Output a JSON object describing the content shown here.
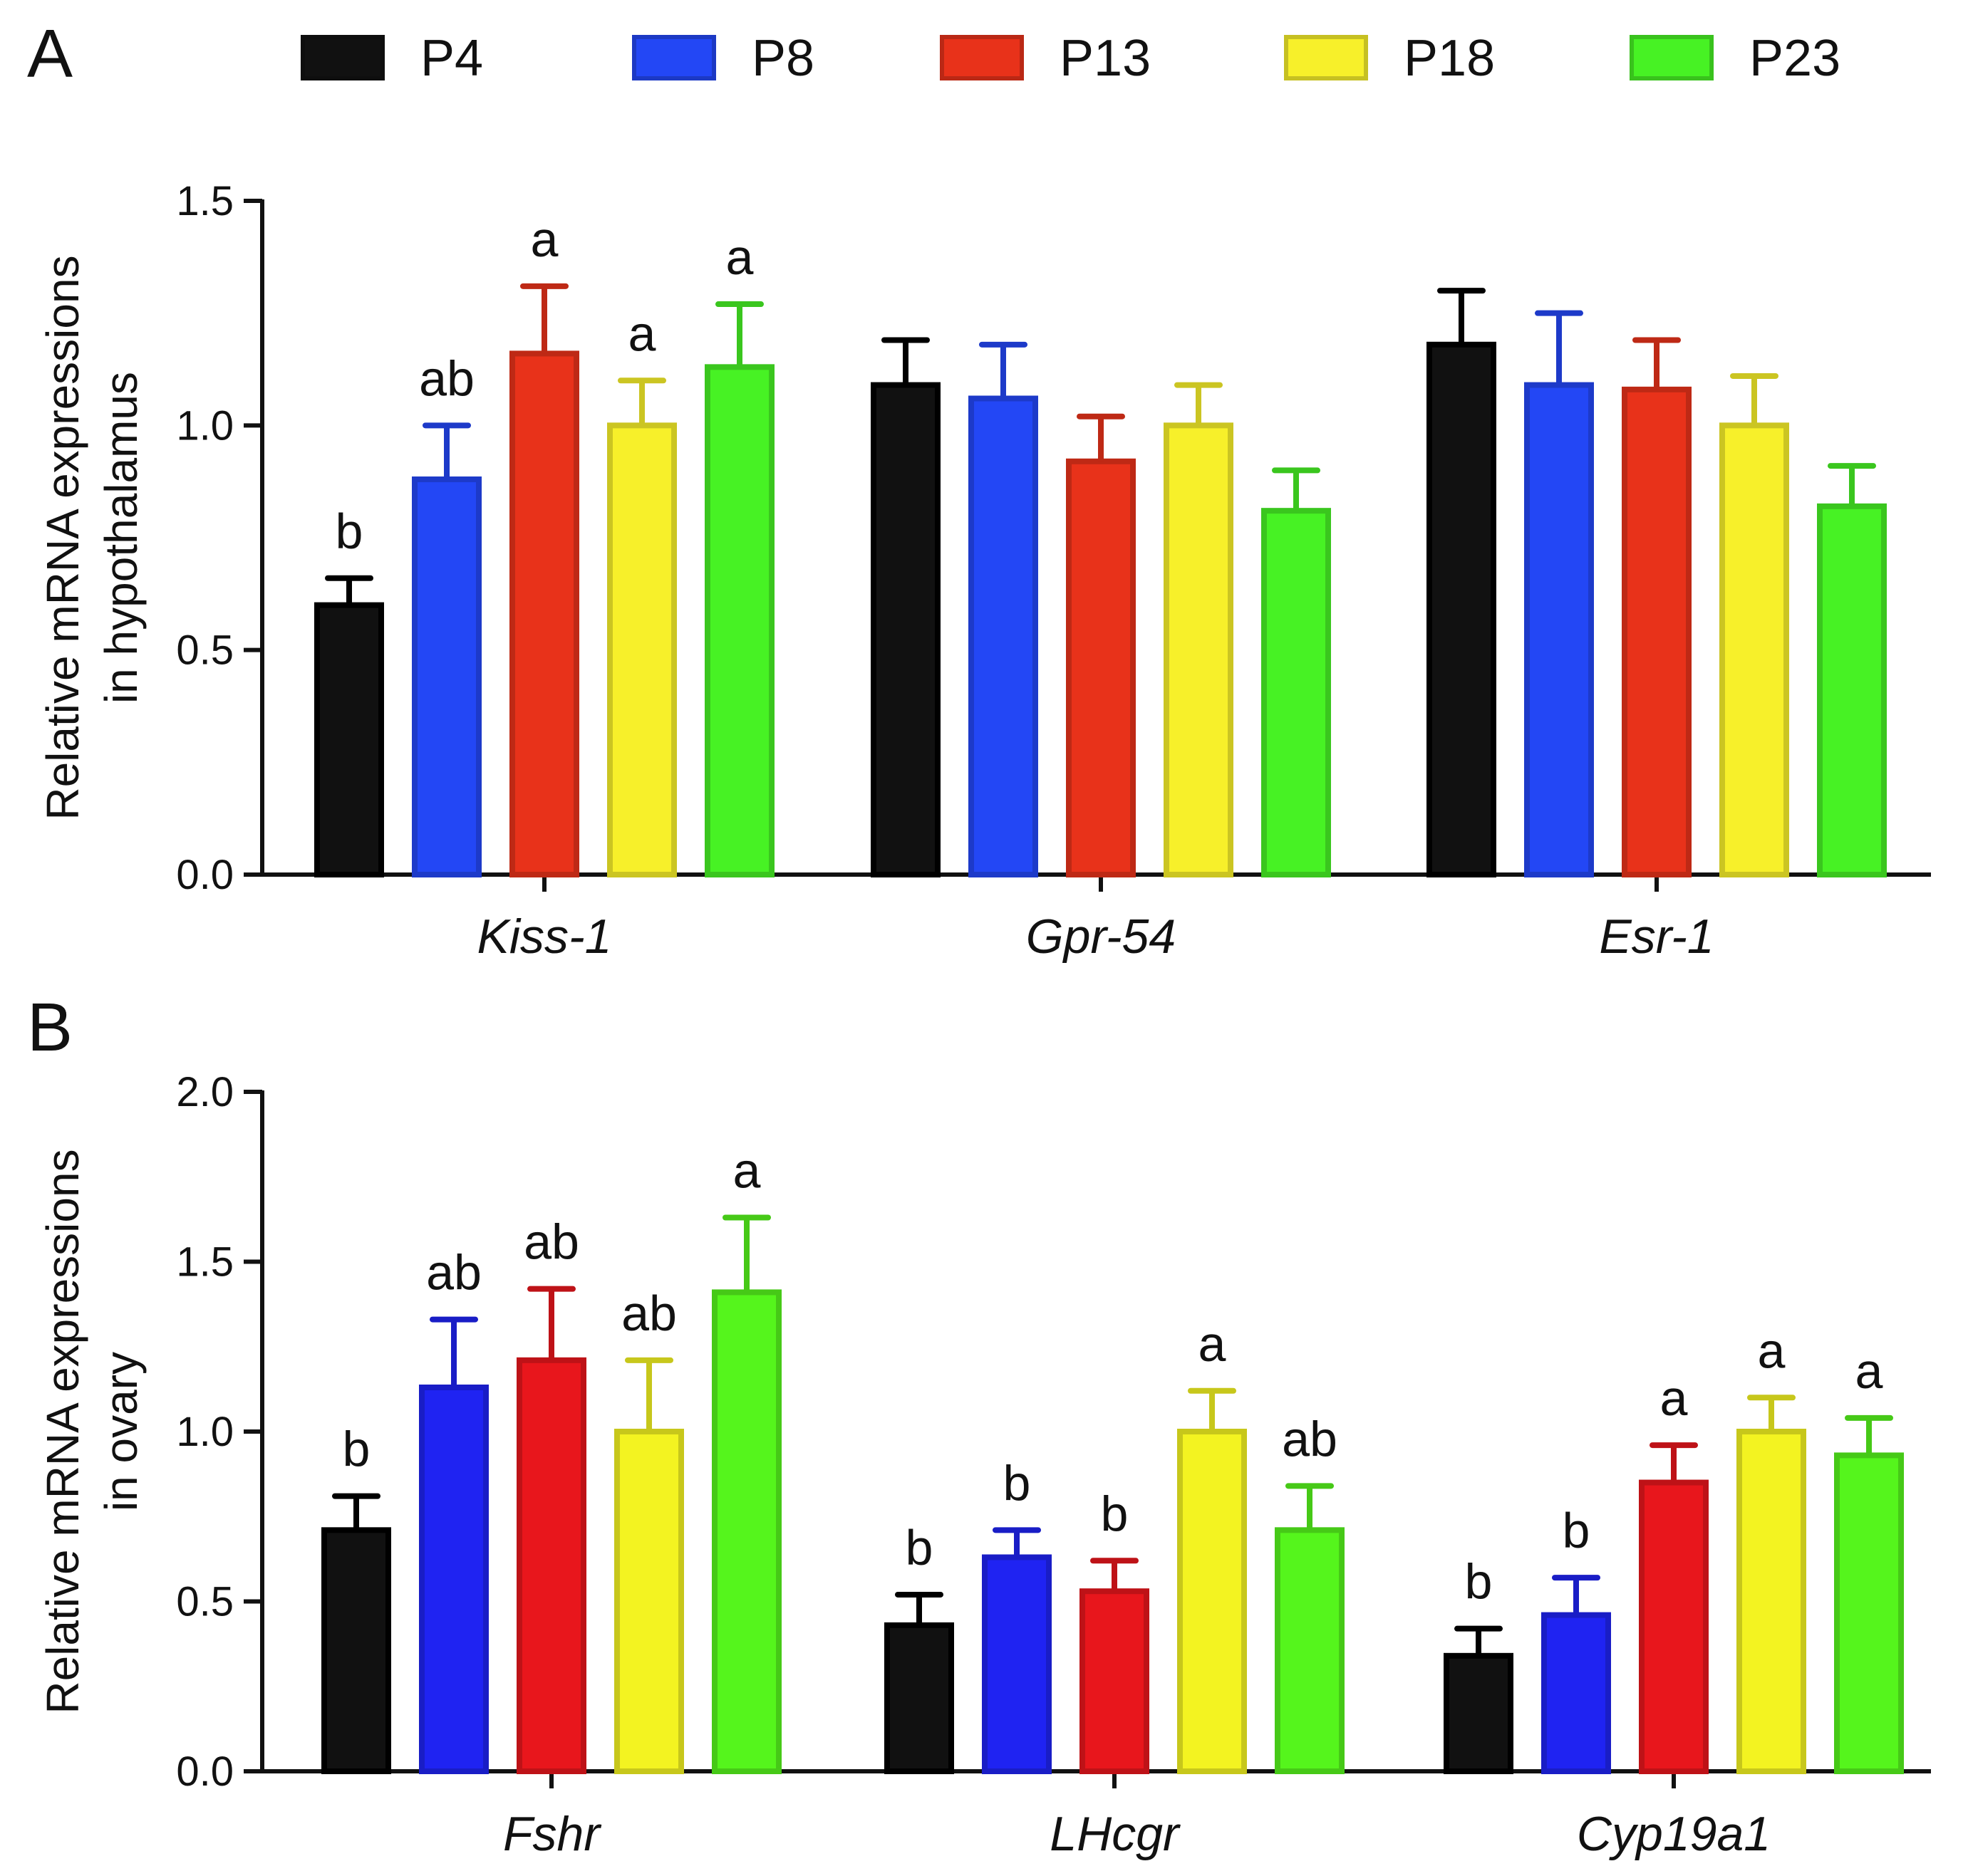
{
  "figure": {
    "legend": [
      {
        "label": "P4",
        "color": "#111111"
      },
      {
        "label": "P8",
        "color": "#2347f5"
      },
      {
        "label": "P13",
        "color": "#e8321a"
      },
      {
        "label": "P18",
        "color": "#f7f02a"
      },
      {
        "label": "P23",
        "color": "#47f224"
      }
    ]
  },
  "chart_data": [
    {
      "panel": "A",
      "type": "bar",
      "ylabel_lines": [
        "Relative mRNA expressions",
        "in hypothalamus"
      ],
      "ylim": [
        0,
        1.5
      ],
      "yticks": [
        "0.0",
        "0.5",
        "1.0",
        "1.5"
      ],
      "categories": [
        "Kiss-1",
        "Gpr-54",
        "Esr-1"
      ],
      "series": [
        {
          "name": "P4",
          "color": "#111111",
          "values": [
            0.6,
            1.09,
            1.18
          ],
          "errors": [
            0.06,
            0.1,
            0.12
          ],
          "sig": [
            "b",
            "",
            ""
          ]
        },
        {
          "name": "P8",
          "color": "#2347f5",
          "values": [
            0.88,
            1.06,
            1.09
          ],
          "errors": [
            0.12,
            0.12,
            0.16
          ],
          "sig": [
            "ab",
            "",
            ""
          ]
        },
        {
          "name": "P13",
          "color": "#e8321a",
          "values": [
            1.16,
            0.92,
            1.08
          ],
          "errors": [
            0.15,
            0.1,
            0.11
          ],
          "sig": [
            "a",
            "",
            ""
          ]
        },
        {
          "name": "P18",
          "color": "#f7f02a",
          "values": [
            1.0,
            1.0,
            1.0
          ],
          "errors": [
            0.1,
            0.09,
            0.11
          ],
          "sig": [
            "a",
            "",
            ""
          ]
        },
        {
          "name": "P23",
          "color": "#47f224",
          "values": [
            1.13,
            0.81,
            0.82
          ],
          "errors": [
            0.14,
            0.09,
            0.09
          ],
          "sig": [
            "a",
            "",
            ""
          ]
        }
      ]
    },
    {
      "panel": "B",
      "type": "bar",
      "ylabel_lines": [
        "Relative mRNA expressions",
        "in ovary"
      ],
      "ylim": [
        0,
        2.0
      ],
      "yticks": [
        "0.0",
        "0.5",
        "1.0",
        "1.5",
        "2.0"
      ],
      "categories": [
        "Fshr",
        "LHcgr",
        "Cyp19a1"
      ],
      "series": [
        {
          "name": "P4",
          "color": "#111111",
          "values": [
            0.71,
            0.43,
            0.34
          ],
          "errors": [
            0.1,
            0.09,
            0.08
          ],
          "sig": [
            "b",
            "b",
            "b"
          ]
        },
        {
          "name": "P8",
          "color": "#1f23f2",
          "values": [
            1.13,
            0.63,
            0.46
          ],
          "errors": [
            0.2,
            0.08,
            0.11
          ],
          "sig": [
            "ab",
            "b",
            "b"
          ]
        },
        {
          "name": "P13",
          "color": "#e8161c",
          "values": [
            1.21,
            0.53,
            0.85
          ],
          "errors": [
            0.21,
            0.09,
            0.11
          ],
          "sig": [
            "ab",
            "b",
            "a"
          ]
        },
        {
          "name": "P18",
          "color": "#f3f321",
          "values": [
            1.0,
            1.0,
            1.0
          ],
          "errors": [
            0.21,
            0.12,
            0.1
          ],
          "sig": [
            "ab",
            "a",
            "a"
          ]
        },
        {
          "name": "P23",
          "color": "#55f51c",
          "values": [
            1.41,
            0.71,
            0.93
          ],
          "errors": [
            0.22,
            0.13,
            0.11
          ],
          "sig": [
            "a",
            "ab",
            "a"
          ]
        }
      ]
    }
  ]
}
